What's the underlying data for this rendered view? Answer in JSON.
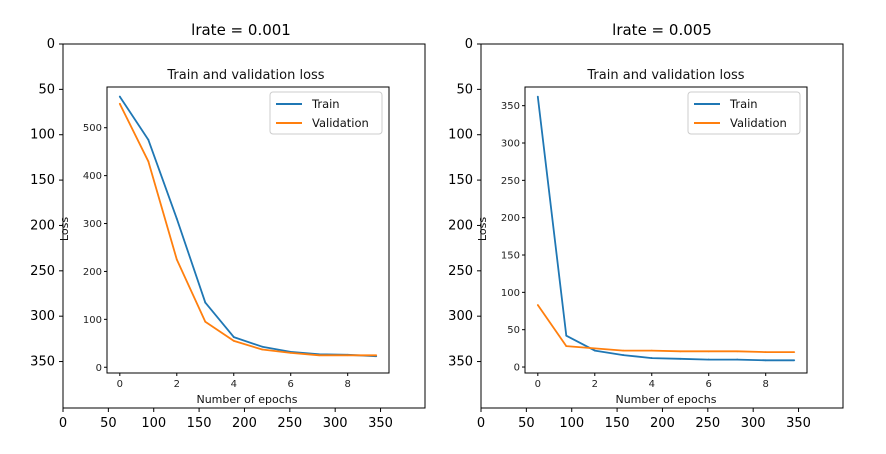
{
  "panels": [
    {
      "title": "lrate = 0.001",
      "outer_axes": {
        "x_ticks": [
          "0",
          "50",
          "100",
          "150",
          "200",
          "250",
          "300",
          "350"
        ],
        "y_ticks": [
          "0",
          "50",
          "100",
          "150",
          "200",
          "250",
          "300",
          "350"
        ]
      }
    },
    {
      "title": "lrate = 0.005",
      "outer_axes": {
        "x_ticks": [
          "0",
          "50",
          "100",
          "150",
          "200",
          "250",
          "300",
          "350"
        ],
        "y_ticks": [
          "0",
          "50",
          "100",
          "150",
          "200",
          "250",
          "300",
          "350"
        ]
      }
    }
  ],
  "chart_data": [
    {
      "type": "line",
      "title": "Train and validation loss",
      "xlabel": "Number of epochs",
      "ylabel": "Loss",
      "x": [
        0,
        1,
        2,
        3,
        4,
        5,
        6,
        7,
        8,
        9
      ],
      "xlim": [
        -0.45,
        9.45
      ],
      "ylim": [
        -12,
        585
      ],
      "x_ticks": [
        0,
        2,
        4,
        6,
        8
      ],
      "y_ticks": [
        0,
        100,
        200,
        300,
        400,
        500
      ],
      "grid": false,
      "legend_position": "top-right",
      "colors": {
        "Train": "#1f77b4",
        "Validation": "#ff7f0e"
      },
      "series": [
        {
          "name": "Train",
          "values": [
            565,
            475,
            310,
            135,
            63,
            43,
            32,
            27,
            26,
            23
          ]
        },
        {
          "name": "Validation",
          "values": [
            550,
            430,
            225,
            95,
            55,
            37,
            30,
            25,
            25,
            25
          ]
        }
      ]
    },
    {
      "type": "line",
      "title": "Train and validation loss",
      "xlabel": "Number of epochs",
      "ylabel": "Loss",
      "x": [
        0,
        1,
        2,
        3,
        4,
        5,
        6,
        7,
        8,
        9
      ],
      "xlim": [
        -0.45,
        9.45
      ],
      "ylim": [
        -8,
        375
      ],
      "x_ticks": [
        0,
        2,
        4,
        6,
        8
      ],
      "y_ticks": [
        0,
        50,
        100,
        150,
        200,
        250,
        300,
        350
      ],
      "grid": false,
      "legend_position": "top-right",
      "colors": {
        "Train": "#1f77b4",
        "Validation": "#ff7f0e"
      },
      "series": [
        {
          "name": "Train",
          "values": [
            362,
            42,
            22,
            16,
            12,
            11,
            10,
            10,
            9,
            9
          ]
        },
        {
          "name": "Validation",
          "values": [
            83,
            28,
            25,
            22,
            22,
            21,
            21,
            21,
            20,
            20
          ]
        }
      ]
    }
  ]
}
